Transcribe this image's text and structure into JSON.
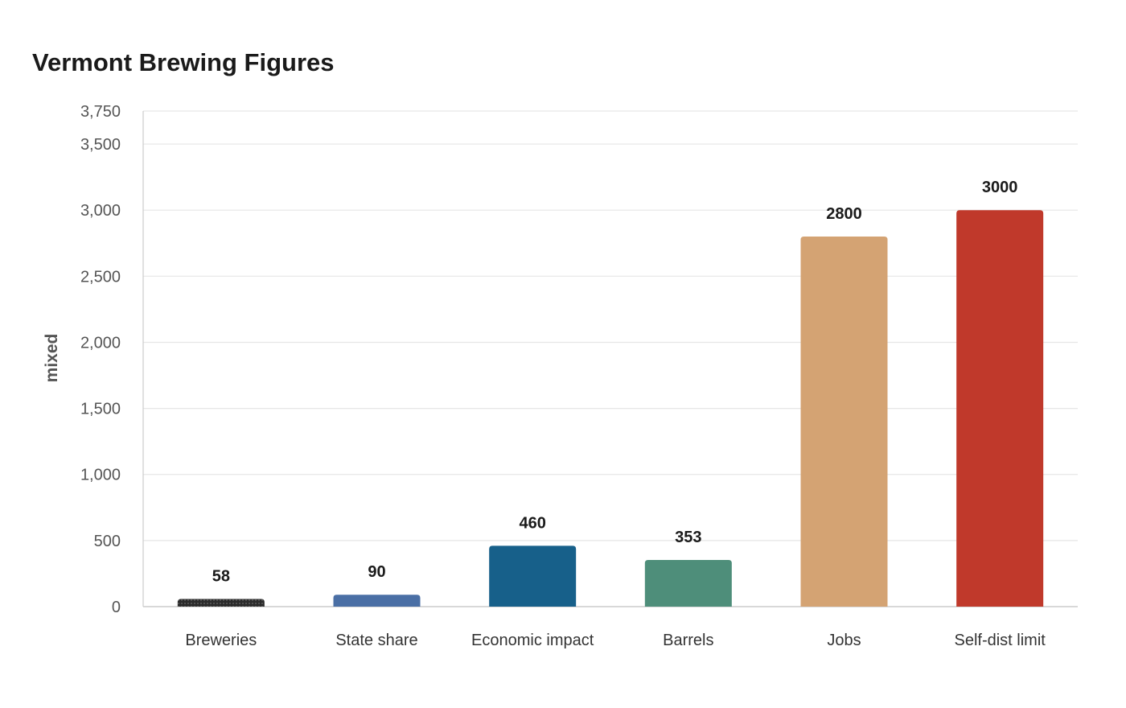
{
  "chart_data": {
    "type": "bar",
    "title": "Vermont Brewing Figures",
    "xlabel": "",
    "ylabel": "mixed",
    "categories": [
      "Breweries",
      "State share",
      "Economic impact",
      "Barrels",
      "Jobs",
      "Self-dist limit"
    ],
    "values": [
      58,
      90,
      460,
      353,
      2800,
      3000
    ],
    "value_labels": [
      "58",
      "90",
      "460",
      "353",
      "2800",
      "3000"
    ],
    "colors": [
      "#333333",
      "#4a6fa5",
      "#17608a",
      "#4e8e7a",
      "#d4a373",
      "#c0392b"
    ],
    "ylim": [
      0,
      3750
    ],
    "yticks": [
      0,
      500,
      1000,
      1500,
      2000,
      2500,
      3000,
      3500,
      3750
    ],
    "ytick_labels": [
      "0",
      "500",
      "1,000",
      "1,500",
      "2,000",
      "2,500",
      "3,000",
      "3,500",
      "3,750"
    ],
    "grid": true,
    "legend": "none",
    "first_bar_pattern": "dotted"
  }
}
